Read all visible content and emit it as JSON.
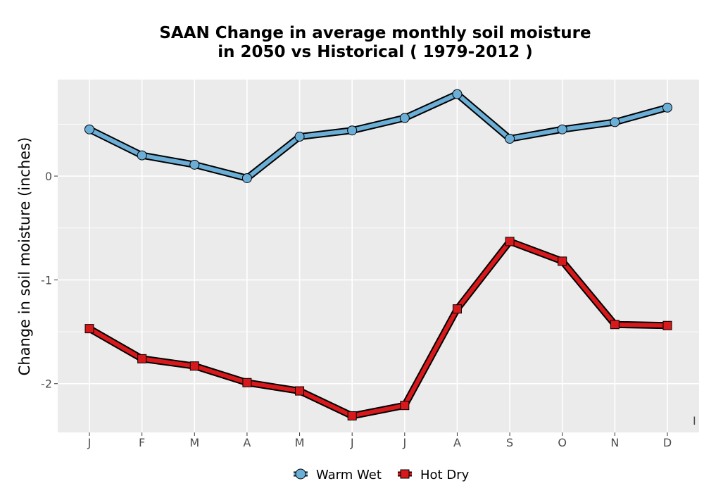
{
  "chart_data": {
    "type": "line",
    "title_lines": [
      "SAAN  Change in average monthly soil moisture",
      "in 2050 vs Historical ( 1979-2012 )"
    ],
    "xlabel": "",
    "ylabel": "Change in soil moisture (inches)",
    "categories": [
      "J",
      "F",
      "M",
      "A",
      "M",
      "J",
      "J",
      "A",
      "S",
      "O",
      "N",
      "D"
    ],
    "y_ticks": [
      0,
      -1,
      -2
    ],
    "y_tick_labels": [
      "0",
      "-1",
      "-2"
    ],
    "ylim": [
      -2.47,
      0.93
    ],
    "grid": true,
    "legend_position": "bottom",
    "stray_label": "I",
    "series": [
      {
        "name": "Warm Wet",
        "color": "#6baed6",
        "marker": "circle",
        "values": [
          0.45,
          0.2,
          0.11,
          -0.02,
          0.38,
          0.44,
          0.56,
          0.79,
          0.36,
          0.45,
          0.52,
          0.66
        ]
      },
      {
        "name": "Hot Dry",
        "color": "#d7191c",
        "marker": "square",
        "values": [
          -1.47,
          -1.76,
          -1.83,
          -1.99,
          -2.07,
          -2.31,
          -2.21,
          -1.28,
          -0.63,
          -0.82,
          -1.43,
          -1.44
        ]
      }
    ]
  }
}
